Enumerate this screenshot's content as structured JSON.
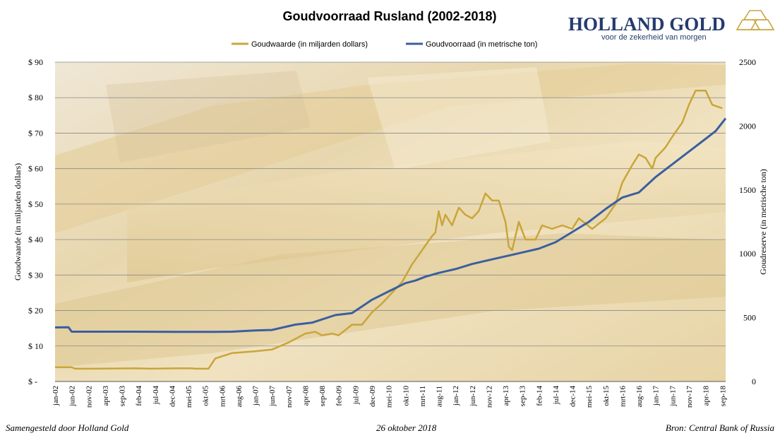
{
  "chart_data": {
    "type": "line",
    "title": "Goudvoorraad Rusland (2002-2018)",
    "y_left_label": "Goudwaarde  (in miljarden dollars)",
    "y_right_label": "Goudreserve  (in metrische ton)",
    "y_left_range": [
      0,
      90
    ],
    "y_right_range": [
      0,
      2500
    ],
    "y_left_ticks": [
      "$ -",
      "$ 10",
      "$ 20",
      "$ 30",
      "$ 40",
      "$ 50",
      "$ 60",
      "$ 70",
      "$ 80",
      "$ 90"
    ],
    "y_left_tick_values": [
      0,
      10,
      20,
      30,
      40,
      50,
      60,
      70,
      80,
      90
    ],
    "y_right_ticks": [
      "0",
      "500",
      "1000",
      "1500",
      "2000",
      "2500"
    ],
    "y_right_tick_values": [
      0,
      500,
      1000,
      1500,
      2000,
      2500
    ],
    "x_range": [
      "jan-02",
      "okt-18"
    ],
    "x_tick_labels": [
      "jan-02",
      "jun-02",
      "nov-02",
      "apr-03",
      "sep-03",
      "feb-04",
      "jul-04",
      "dec-04",
      "mei-05",
      "okt-05",
      "mrt-06",
      "aug-06",
      "jan-07",
      "jun-07",
      "nov-07",
      "apr-08",
      "sep-08",
      "feb-09",
      "jul-09",
      "dec-09",
      "mei-10",
      "okt-10",
      "mrt-11",
      "aug-11",
      "jan-12",
      "jun-12",
      "nov-12",
      "apr-13",
      "sep-13",
      "feb-14",
      "jul-14",
      "dec-14",
      "mei-15",
      "okt-15",
      "mrt-16",
      "aug-16",
      "jan-17",
      "jun-17",
      "nov-17",
      "apr-18",
      "sep-18"
    ],
    "grid": true,
    "legend_position": "top-center",
    "series": [
      {
        "name": "Goudwaarde (in miljarden dollars)",
        "axis": "left",
        "color": "#c9a53a",
        "points": [
          [
            "jan-02",
            4
          ],
          [
            "jun-02",
            4
          ],
          [
            "jul-02",
            3.6
          ],
          [
            "jan-03",
            3.6
          ],
          [
            "jan-04",
            3.7
          ],
          [
            "jun-04",
            3.6
          ],
          [
            "jan-05",
            3.7
          ],
          [
            "jun-05",
            3.7
          ],
          [
            "jul-05",
            3.6
          ],
          [
            "nov-05",
            3.6
          ],
          [
            "jan-06",
            6.5
          ],
          [
            "jun-06",
            8
          ],
          [
            "jan-07",
            8.5
          ],
          [
            "jun-07",
            9
          ],
          [
            "nov-07",
            11
          ],
          [
            "apr-08",
            13.5
          ],
          [
            "jul-08",
            14
          ],
          [
            "sep-08",
            13
          ],
          [
            "dec-08",
            13.5
          ],
          [
            "feb-09",
            13
          ],
          [
            "jun-09",
            16
          ],
          [
            "sep-09",
            16
          ],
          [
            "dec-09",
            19.5
          ],
          [
            "mrt-10",
            22
          ],
          [
            "jun-10",
            25
          ],
          [
            "sep-10",
            28
          ],
          [
            "dec-10",
            33
          ],
          [
            "mrt-11",
            37
          ],
          [
            "jun-11",
            41
          ],
          [
            "jul-11",
            42
          ],
          [
            "aug-11",
            48
          ],
          [
            "sep-11",
            44
          ],
          [
            "okt-11",
            47
          ],
          [
            "dec-11",
            44
          ],
          [
            "feb-12",
            49
          ],
          [
            "apr-12",
            47
          ],
          [
            "jun-12",
            46
          ],
          [
            "aug-12",
            48
          ],
          [
            "okt-12",
            53
          ],
          [
            "dec-12",
            51
          ],
          [
            "feb-13",
            51
          ],
          [
            "apr-13",
            45
          ],
          [
            "mei-13",
            38
          ],
          [
            "jun-13",
            37
          ],
          [
            "aug-13",
            45
          ],
          [
            "okt-13",
            40
          ],
          [
            "jan-14",
            40
          ],
          [
            "mrt-14",
            44
          ],
          [
            "jun-14",
            43
          ],
          [
            "sep-14",
            44
          ],
          [
            "dec-14",
            43
          ],
          [
            "feb-15",
            46
          ],
          [
            "jun-15",
            43
          ],
          [
            "okt-15",
            46
          ],
          [
            "jan-16",
            50
          ],
          [
            "mrt-16",
            56
          ],
          [
            "jun-16",
            61
          ],
          [
            "aug-16",
            64
          ],
          [
            "okt-16",
            63
          ],
          [
            "dec-16",
            60
          ],
          [
            "jan-17",
            63
          ],
          [
            "apr-17",
            66
          ],
          [
            "jun-17",
            69
          ],
          [
            "sep-17",
            73
          ],
          [
            "nov-17",
            78
          ],
          [
            "jan-18",
            82
          ],
          [
            "apr-18",
            82
          ],
          [
            "jun-18",
            78
          ],
          [
            "sep-18",
            77
          ]
        ]
      },
      {
        "name": "Goudvoorraad (in metrische ton)",
        "axis": "right",
        "color": "#3a5fa0",
        "points": [
          [
            "jan-02",
            423
          ],
          [
            "mei-02",
            425
          ],
          [
            "jun-02",
            390
          ],
          [
            "jan-03",
            390
          ],
          [
            "jan-04",
            390
          ],
          [
            "jan-05",
            389
          ],
          [
            "jun-05",
            388
          ],
          [
            "jan-06",
            388
          ],
          [
            "jun-06",
            390
          ],
          [
            "jan-07",
            400
          ],
          [
            "jun-07",
            403
          ],
          [
            "jan-08",
            445
          ],
          [
            "jun-08",
            460
          ],
          [
            "jan-09",
            520
          ],
          [
            "jun-09",
            535
          ],
          [
            "dec-09",
            640
          ],
          [
            "mei-10",
            705
          ],
          [
            "okt-10",
            770
          ],
          [
            "jan-11",
            790
          ],
          [
            "apr-11",
            820
          ],
          [
            "aug-11",
            850
          ],
          [
            "jan-12",
            880
          ],
          [
            "jun-12",
            920
          ],
          [
            "nov-12",
            950
          ],
          [
            "apr-13",
            980
          ],
          [
            "sep-13",
            1010
          ],
          [
            "feb-14",
            1040
          ],
          [
            "jul-14",
            1090
          ],
          [
            "dec-14",
            1170
          ],
          [
            "mei-15",
            1250
          ],
          [
            "okt-15",
            1350
          ],
          [
            "mrt-16",
            1440
          ],
          [
            "aug-16",
            1480
          ],
          [
            "jan-17",
            1600
          ],
          [
            "jun-17",
            1700
          ],
          [
            "nov-17",
            1800
          ],
          [
            "apr-18",
            1900
          ],
          [
            "jul-18",
            1960
          ],
          [
            "okt-18",
            2060
          ]
        ]
      }
    ]
  },
  "brand": {
    "name": "HOLLAND GOLD",
    "tagline": "voor de zekerheid van morgen",
    "name_color": "#253b6e",
    "icon": "gold-bars-logo-icon"
  },
  "footer": {
    "left": "Samengesteld door Holland Gold",
    "center": "26 oktober 2018",
    "right": "Bron: Central Bank of Russia"
  }
}
